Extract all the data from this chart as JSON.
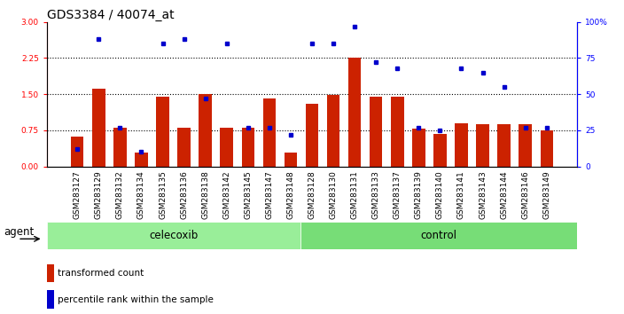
{
  "title": "GDS3384 / 40074_at",
  "samples": [
    "GSM283127",
    "GSM283129",
    "GSM283132",
    "GSM283134",
    "GSM283135",
    "GSM283136",
    "GSM283138",
    "GSM283142",
    "GSM283145",
    "GSM283147",
    "GSM283148",
    "GSM283128",
    "GSM283130",
    "GSM283131",
    "GSM283133",
    "GSM283137",
    "GSM283139",
    "GSM283140",
    "GSM283141",
    "GSM283143",
    "GSM283144",
    "GSM283146",
    "GSM283149"
  ],
  "red_values": [
    0.62,
    1.62,
    0.8,
    0.28,
    1.45,
    0.8,
    1.5,
    0.8,
    0.8,
    1.42,
    0.28,
    1.3,
    1.48,
    2.25,
    1.45,
    1.45,
    0.78,
    0.68,
    0.9,
    0.88,
    0.88,
    0.88,
    0.75
  ],
  "blue_values_pct": [
    12,
    88,
    27,
    10,
    85,
    88,
    47,
    85,
    27,
    27,
    22,
    85,
    85,
    97,
    72,
    68,
    27,
    25,
    68,
    65,
    55,
    27,
    27
  ],
  "celecoxib_count": 11,
  "control_count": 12,
  "ylim_left": [
    0,
    3
  ],
  "ylim_right": [
    0,
    100
  ],
  "yticks_left": [
    0,
    0.75,
    1.5,
    2.25,
    3
  ],
  "yticks_right": [
    0,
    25,
    50,
    75,
    100
  ],
  "hlines": [
    0.75,
    1.5,
    2.25
  ],
  "bar_color": "#CC2200",
  "dot_color": "#0000CC",
  "celecoxib_color": "#99EE99",
  "control_color": "#77DD77",
  "xticklabel_bg": "#CCCCCC",
  "agent_label": "agent",
  "celecoxib_label": "celecoxib",
  "control_label": "control",
  "legend_red": "transformed count",
  "legend_blue": "percentile rank within the sample",
  "title_fontsize": 10,
  "tick_fontsize": 6.5,
  "label_fontsize": 8.5
}
